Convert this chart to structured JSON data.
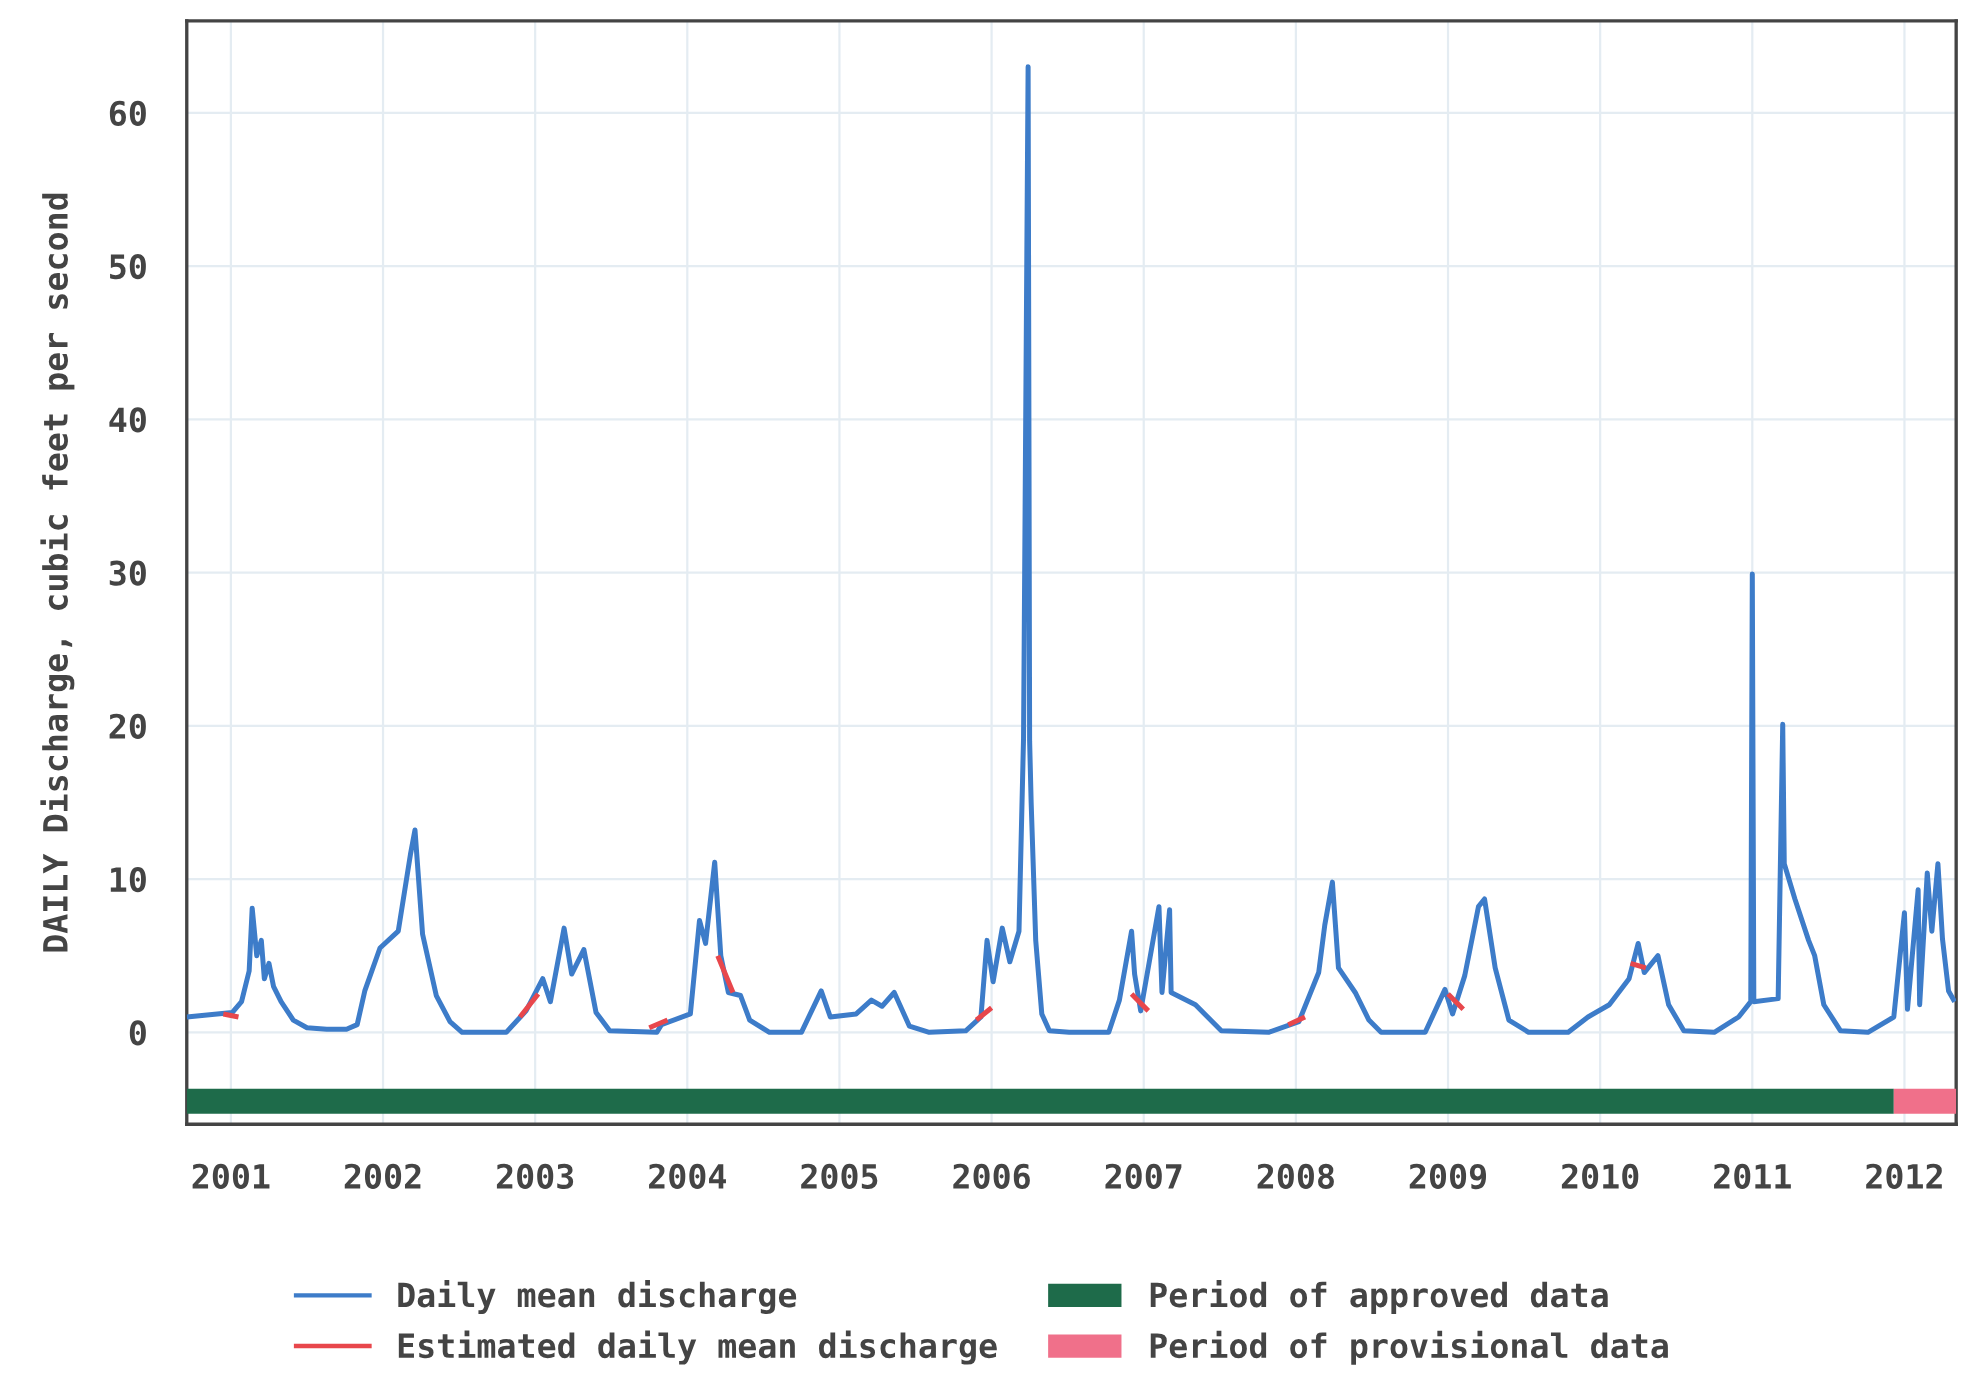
{
  "chart_data": {
    "type": "line",
    "ylabel": "DAILY Discharge, cubic feet per second",
    "xlim": [
      2000.71,
      2012.34
    ],
    "xticks": [
      2001,
      2002,
      2003,
      2004,
      2005,
      2006,
      2007,
      2008,
      2009,
      2010,
      2011,
      2012
    ],
    "ylim": [
      -6,
      66
    ],
    "yticks": [
      0,
      10,
      20,
      30,
      40,
      50,
      60
    ],
    "grid": true,
    "legend": "bottom",
    "line_style": "solid",
    "marker": "none",
    "series": [
      {
        "name": "Daily mean discharge",
        "color": "#3d7cc9",
        "x": [
          2000.71,
          2000.91,
          2001.01,
          2001.07,
          2001.12,
          2001.14,
          2001.17,
          2001.2,
          2001.22,
          2001.25,
          2001.28,
          2001.33,
          2001.41,
          2001.5,
          2001.63,
          2001.76,
          2001.83,
          2001.88,
          2001.98,
          2002.1,
          2002.18,
          2002.21,
          2002.26,
          2002.35,
          2002.44,
          2002.52,
          2002.81,
          2002.94,
          2003.05,
          2003.1,
          2003.19,
          2003.24,
          2003.32,
          2003.4,
          2003.49,
          2003.8,
          2003.83,
          2004.02,
          2004.08,
          2004.12,
          2004.18,
          2004.22,
          2004.27,
          2004.35,
          2004.41,
          2004.54,
          2004.75,
          2004.88,
          2004.94,
          2005.11,
          2005.21,
          2005.28,
          2005.36,
          2005.46,
          2005.59,
          2005.83,
          2005.93,
          2005.97,
          2006.01,
          2006.07,
          2006.12,
          2006.18,
          2006.21,
          2006.24,
          2006.25,
          2006.26,
          2006.29,
          2006.33,
          2006.38,
          2006.51,
          2006.77,
          2006.84,
          2006.92,
          2006.94,
          2006.98,
          2007.1,
          2007.12,
          2007.17,
          2007.18,
          2007.34,
          2007.51,
          2007.82,
          2008.02,
          2008.15,
          2008.19,
          2008.24,
          2008.28,
          2008.39,
          2008.48,
          2008.56,
          2008.85,
          2008.98,
          2009.03,
          2009.11,
          2009.2,
          2009.24,
          2009.31,
          2009.4,
          2009.53,
          2009.79,
          2009.92,
          2010.06,
          2010.19,
          2010.25,
          2010.29,
          2010.38,
          2010.45,
          2010.55,
          2010.75,
          2010.91,
          2010.99,
          2011.0,
          2011.01,
          2011.17,
          2011.2,
          2011.21,
          2011.28,
          2011.37,
          2011.41,
          2011.47,
          2011.58,
          2011.76,
          2011.93,
          2012.0,
          2012.02,
          2012.09,
          2012.1,
          2012.15,
          2012.18,
          2012.22,
          2012.25,
          2012.29,
          2012.33
        ],
        "values": [
          1.0,
          1.2,
          1.3,
          2,
          4,
          8.1,
          5,
          6,
          3.5,
          4.5,
          3,
          2,
          0.8,
          0.3,
          0.2,
          0.2,
          0.5,
          2.7,
          5.5,
          6.6,
          11.6,
          13.2,
          6.4,
          2.4,
          0.7,
          0,
          0,
          1.4,
          3.5,
          2,
          6.8,
          3.8,
          5.4,
          1.3,
          0.1,
          0,
          0.5,
          1.2,
          7.3,
          5.8,
          11.1,
          5,
          2.6,
          2.4,
          0.8,
          0,
          0,
          2.7,
          1,
          1.2,
          2.1,
          1.7,
          2.6,
          0.4,
          0,
          0.1,
          1,
          6,
          3.3,
          6.8,
          4.6,
          6.6,
          19.2,
          63,
          19,
          15,
          6,
          1.2,
          0.1,
          0,
          0,
          2.1,
          6.6,
          3.8,
          1.4,
          8.2,
          2.6,
          8,
          2.6,
          1.8,
          0.1,
          0,
          0.7,
          3.9,
          7,
          9.8,
          4.2,
          2.6,
          0.8,
          0,
          0,
          2.8,
          1.2,
          3.7,
          8.2,
          8.7,
          4.2,
          0.8,
          0,
          0,
          1,
          1.8,
          3.5,
          5.8,
          3.9,
          5,
          1.8,
          0.1,
          0,
          1,
          2,
          29.9,
          2,
          2.2,
          20.1,
          11,
          8.7,
          6,
          5,
          1.8,
          0.1,
          0,
          1,
          7.8,
          1.5,
          9.3,
          1.8,
          10.4,
          6.6,
          11,
          6.1,
          2.7,
          2
        ]
      },
      {
        "name": "Estimated daily mean discharge",
        "color": "#e8474c",
        "x": [
          2000.95,
          2001.05,
          2001.06,
          2002.9,
          2003.02,
          2003.03,
          2003.75,
          2003.87,
          2003.88,
          2004.2,
          2004.3,
          2004.31,
          2005.9,
          2006.0,
          2006.01,
          2006.92,
          2007.03,
          2007.04,
          2007.95,
          2008.06,
          2008.07,
          2009.0,
          2009.1,
          2009.11,
          2010.2,
          2010.3
        ],
        "values": [
          1.2,
          1.0,
          null,
          1.0,
          2.5,
          null,
          0.3,
          0.8,
          null,
          5,
          2.6,
          null,
          0.8,
          1.6,
          null,
          2.5,
          1.4,
          null,
          0.5,
          1.0,
          null,
          2.5,
          1.5,
          null,
          4.5,
          4.2
        ]
      },
      {
        "name": "Period of approved data",
        "color": "#1e6b4a",
        "x": [
          2000.71,
          2011.93
        ],
        "values": [
          -4.5,
          -4.5
        ]
      },
      {
        "name": "Period of provisional data",
        "color": "#f0708a",
        "x": [
          2011.93,
          2012.34
        ],
        "values": [
          -4.5,
          -4.5
        ]
      }
    ]
  }
}
